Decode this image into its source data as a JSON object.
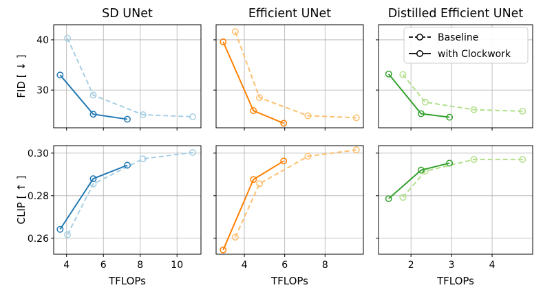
{
  "chart_data": [
    {
      "type": "line",
      "title": "SD UNet",
      "row_metrics": [
        "FID [ ↓ ]",
        "CLIP [ ↑ ]"
      ],
      "xlabel": "TFLOPs",
      "xlim": [
        3.3,
        11.3
      ],
      "xticks": [
        4,
        6,
        8,
        10
      ],
      "fid": {
        "ylabel": "FID [ ↓ ]",
        "ylim": [
          22.5,
          43
        ],
        "yticks": [
          30,
          40
        ],
        "series": [
          {
            "name": "Baseline",
            "style": "dashed",
            "color": "#a6cee3",
            "x": [
              4.05,
              5.45,
              8.15,
              10.85
            ],
            "y": [
              40.3,
              29.0,
              25.1,
              24.7
            ]
          },
          {
            "name": "with Clockwork",
            "style": "solid",
            "color": "#1f78b4",
            "x": [
              3.65,
              5.45,
              7.3
            ],
            "y": [
              33.0,
              25.2,
              24.2
            ]
          }
        ]
      },
      "clip": {
        "ylabel": "CLIP [ ↑ ]",
        "ylim": [
          0.2525,
          0.3035
        ],
        "yticks": [
          0.26,
          0.28,
          0.3
        ],
        "ytick_labels": [
          "0.26",
          "0.28",
          "0.30"
        ],
        "series": [
          {
            "name": "Baseline",
            "style": "dashed",
            "color": "#a6cee3",
            "x": [
              4.05,
              5.45,
              8.15,
              10.85
            ],
            "y": [
              0.2617,
              0.2855,
              0.2973,
              0.3003
            ]
          },
          {
            "name": "with Clockwork",
            "style": "solid",
            "color": "#1f78b4",
            "x": [
              3.65,
              5.45,
              7.3
            ],
            "y": [
              0.2642,
              0.288,
              0.2943
            ]
          }
        ]
      }
    },
    {
      "type": "line",
      "title": "Efficient UNet",
      "xlabel": "TFLOPs",
      "xlim": [
        2.6,
        9.9
      ],
      "xticks": [
        4,
        6,
        8
      ],
      "fid": {
        "ylim": [
          22.5,
          43
        ],
        "yticks": [
          30,
          40
        ],
        "series": [
          {
            "name": "Baseline",
            "style": "dashed",
            "color": "#fdbf6f",
            "x": [
              3.55,
              4.75,
              7.15,
              9.55
            ],
            "y": [
              41.6,
              28.5,
              24.9,
              24.5
            ]
          },
          {
            "name": "with Clockwork",
            "style": "solid",
            "color": "#ff7f00",
            "x": [
              2.95,
              4.45,
              5.95
            ],
            "y": [
              39.6,
              25.9,
              23.4
            ]
          }
        ]
      },
      "clip": {
        "ylim": [
          0.2525,
          0.3035
        ],
        "yticks": [
          0.26,
          0.28,
          0.3
        ],
        "series": [
          {
            "name": "Baseline",
            "style": "dashed",
            "color": "#fdbf6f",
            "x": [
              3.55,
              4.75,
              7.15,
              9.55
            ],
            "y": [
              0.2605,
              0.2856,
              0.2985,
              0.3015
            ]
          },
          {
            "name": "with Clockwork",
            "style": "solid",
            "color": "#ff7f00",
            "x": [
              2.95,
              4.45,
              5.95
            ],
            "y": [
              0.2545,
              0.2876,
              0.2963
            ]
          }
        ]
      }
    },
    {
      "type": "line",
      "title": "Distilled Efficient UNet",
      "xlabel": "TFLOPs",
      "xlim": [
        1.2,
        5.0
      ],
      "xticks": [
        2,
        3,
        4
      ],
      "fid": {
        "ylim": [
          22.5,
          43
        ],
        "yticks": [
          30,
          40
        ],
        "series": [
          {
            "name": "Baseline",
            "style": "dashed",
            "color": "#b2df8a",
            "x": [
              1.8,
              2.35,
              3.55,
              4.75
            ],
            "y": [
              33.1,
              27.6,
              26.1,
              25.8
            ]
          },
          {
            "name": "with Clockwork",
            "style": "solid",
            "color": "#33a02c",
            "x": [
              1.45,
              2.25,
              2.95
            ],
            "y": [
              33.2,
              25.3,
              24.6
            ]
          }
        ]
      },
      "clip": {
        "ylim": [
          0.2525,
          0.3035
        ],
        "yticks": [
          0.26,
          0.28,
          0.3
        ],
        "series": [
          {
            "name": "Baseline",
            "style": "dashed",
            "color": "#b2df8a",
            "x": [
              1.8,
              2.35,
              3.55,
              4.75
            ],
            "y": [
              0.2792,
              0.2915,
              0.297,
              0.297
            ]
          },
          {
            "name": "with Clockwork",
            "style": "solid",
            "color": "#33a02c",
            "x": [
              1.45,
              2.25,
              2.95
            ],
            "y": [
              0.2786,
              0.292,
              0.2953
            ]
          }
        ]
      }
    }
  ],
  "legend": {
    "location": "top-right of Distilled Efficient UNet FID panel",
    "entries": [
      {
        "label": "Baseline",
        "style": "dashed",
        "color": "#000000"
      },
      {
        "label": "with Clockwork",
        "style": "solid",
        "color": "#000000"
      }
    ]
  }
}
